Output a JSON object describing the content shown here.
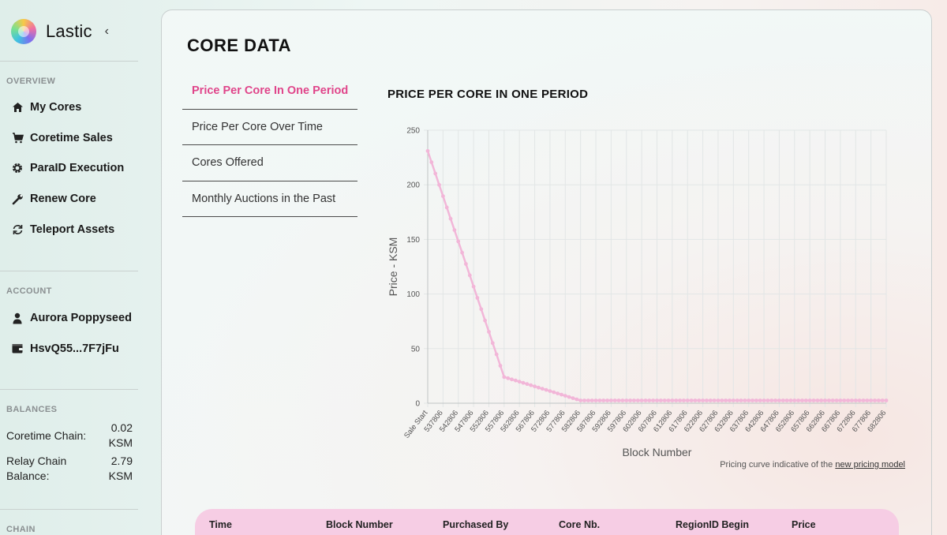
{
  "brand": {
    "name": "Lastic"
  },
  "sidebar": {
    "overview_title": "OVERVIEW",
    "nav": [
      {
        "label": "My Cores",
        "icon": "home-icon"
      },
      {
        "label": "Coretime Sales",
        "icon": "cart-icon"
      },
      {
        "label": "ParaID Execution",
        "icon": "gear-icon"
      },
      {
        "label": "Renew Core",
        "icon": "wrench-icon"
      },
      {
        "label": "Teleport Assets",
        "icon": "refresh-icon"
      }
    ],
    "account_title": "ACCOUNT",
    "account": [
      {
        "label": "Aurora Poppyseed",
        "icon": "user-icon"
      },
      {
        "label": "HsvQ55...7F7jFu",
        "icon": "wallet-icon"
      }
    ],
    "balances_title": "BALANCES",
    "balances": [
      {
        "label_line1": "Coretime Chain:",
        "label_line2": "",
        "value": "0.02",
        "unit": "KSM"
      },
      {
        "label_line1": "Relay Chain",
        "label_line2": "Balance:",
        "value": "2.79",
        "unit": "KSM"
      }
    ],
    "chain_title": "CHAIN"
  },
  "main": {
    "title": "CORE DATA",
    "tabs": [
      "Price Per Core In One Period",
      "Price Per Core Over Time",
      "Cores Offered",
      "Monthly Auctions in the Past"
    ],
    "active_tab": 0,
    "chart_title": "PRICE PER CORE IN ONE PERIOD",
    "note_text": "Pricing curve indicative of the ",
    "note_link": "new pricing model",
    "table_headers": [
      "Time",
      "Block Number",
      "Purchased By",
      "Core Nb.",
      "RegionID Begin",
      "Price"
    ]
  },
  "chart_data": {
    "type": "line",
    "title": "PRICE PER CORE IN ONE PERIOD",
    "xlabel": "Block Number",
    "ylabel": "Price - KSM",
    "ylim": [
      0,
      250
    ],
    "yticks": [
      0,
      50,
      100,
      150,
      200,
      250
    ],
    "grid": true,
    "color": "#f2b6d8",
    "x_tick_labels": [
      "Sale Start",
      "537806",
      "542806",
      "547806",
      "552806",
      "557806",
      "562806",
      "567806",
      "572806",
      "577806",
      "582806",
      "587806",
      "592806",
      "597806",
      "602806",
      "607806",
      "612806",
      "617806",
      "622806",
      "627806",
      "632806",
      "637806",
      "642806",
      "647806",
      "652806",
      "657806",
      "662806",
      "667806",
      "672806",
      "677806",
      "682806"
    ],
    "points": [
      {
        "x": "Sale Start",
        "y": 231
      },
      {
        "x": "557806",
        "y": 24
      },
      {
        "x": "582806",
        "y": 2.5
      },
      {
        "x": "682806",
        "y": 2.5
      }
    ]
  }
}
